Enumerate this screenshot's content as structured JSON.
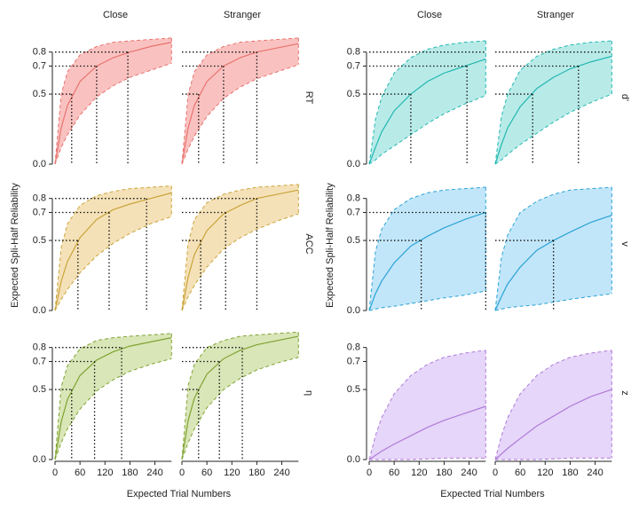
{
  "chart_data": [
    {
      "type": "ribbon-facets",
      "x_label": "Expected Trial Numbers",
      "y_label": "Expected Spli-Half Reliability",
      "columns": [
        "Close",
        "Stranger"
      ],
      "x": [
        0,
        15,
        30,
        60,
        100,
        140,
        180,
        230,
        280
      ],
      "xlim": [
        0,
        290
      ],
      "xticks": [
        0,
        60,
        120,
        180,
        240
      ],
      "ylim": [
        0,
        0.95
      ],
      "yticks": [
        {
          "value": 0,
          "label": "0.0"
        },
        0.5,
        0.7,
        0.8
      ],
      "facets": [
        {
          "name": "RT",
          "fill": "#f7b3b0",
          "color": "#e8736f",
          "cells": [
            {
              "median": [
                0,
                0.26,
                0.42,
                0.59,
                0.7,
                0.76,
                0.8,
                0.84,
                0.87
              ],
              "upper": [
                0,
                0.5,
                0.66,
                0.78,
                0.84,
                0.87,
                0.88,
                0.89,
                0.9
              ],
              "lower": [
                0,
                0.12,
                0.21,
                0.35,
                0.48,
                0.56,
                0.62,
                0.67,
                0.72
              ],
              "thresholds": [
                {
                  "y": 0.5,
                  "x": 40
                },
                {
                  "y": 0.7,
                  "x": 100
                },
                {
                  "y": 0.8,
                  "x": 175
                }
              ]
            },
            {
              "median": [
                0,
                0.26,
                0.42,
                0.59,
                0.7,
                0.76,
                0.8,
                0.83,
                0.86
              ],
              "upper": [
                0,
                0.5,
                0.66,
                0.78,
                0.84,
                0.87,
                0.88,
                0.89,
                0.9
              ],
              "lower": [
                0,
                0.11,
                0.2,
                0.34,
                0.47,
                0.55,
                0.61,
                0.66,
                0.71
              ],
              "thresholds": [
                {
                  "y": 0.5,
                  "x": 40
                },
                {
                  "y": 0.7,
                  "x": 100
                },
                {
                  "y": 0.8,
                  "x": 180
                }
              ]
            }
          ]
        },
        {
          "name": "ACC",
          "fill": "#f2d9a6",
          "color": "#c9a43a",
          "cells": [
            {
              "median": [
                0,
                0.21,
                0.35,
                0.52,
                0.65,
                0.72,
                0.76,
                0.8,
                0.84
              ],
              "upper": [
                0,
                0.45,
                0.62,
                0.75,
                0.82,
                0.85,
                0.87,
                0.88,
                0.89
              ],
              "lower": [
                0,
                0.08,
                0.15,
                0.27,
                0.39,
                0.48,
                0.55,
                0.62,
                0.67
              ],
              "thresholds": [
                {
                  "y": 0.5,
                  "x": 55
                },
                {
                  "y": 0.7,
                  "x": 130
                },
                {
                  "y": 0.8,
                  "x": 220
                }
              ]
            },
            {
              "median": [
                0,
                0.24,
                0.4,
                0.57,
                0.69,
                0.75,
                0.8,
                0.83,
                0.86
              ],
              "upper": [
                0,
                0.48,
                0.65,
                0.77,
                0.83,
                0.86,
                0.88,
                0.89,
                0.9
              ],
              "lower": [
                0,
                0.1,
                0.18,
                0.31,
                0.44,
                0.52,
                0.58,
                0.64,
                0.69
              ],
              "thresholds": [
                {
                  "y": 0.5,
                  "x": 45
                },
                {
                  "y": 0.7,
                  "x": 105
                },
                {
                  "y": 0.8,
                  "x": 180
                }
              ]
            }
          ]
        },
        {
          "name": "η",
          "fill": "#cfe0a6",
          "color": "#7fa332",
          "cells": [
            {
              "median": [
                0,
                0.27,
                0.43,
                0.6,
                0.71,
                0.77,
                0.81,
                0.84,
                0.87
              ],
              "upper": [
                0,
                0.52,
                0.67,
                0.79,
                0.85,
                0.87,
                0.88,
                0.89,
                0.9
              ],
              "lower": [
                0,
                0.12,
                0.22,
                0.36,
                0.49,
                0.57,
                0.63,
                0.68,
                0.72
              ],
              "thresholds": [
                {
                  "y": 0.5,
                  "x": 40
                },
                {
                  "y": 0.7,
                  "x": 95
                },
                {
                  "y": 0.8,
                  "x": 160
                }
              ]
            },
            {
              "median": [
                0,
                0.28,
                0.44,
                0.61,
                0.72,
                0.78,
                0.82,
                0.85,
                0.88
              ],
              "upper": [
                0,
                0.53,
                0.68,
                0.8,
                0.85,
                0.88,
                0.89,
                0.9,
                0.91
              ],
              "lower": [
                0,
                0.12,
                0.22,
                0.37,
                0.5,
                0.58,
                0.64,
                0.69,
                0.73
              ],
              "thresholds": [
                {
                  "y": 0.5,
                  "x": 40
                },
                {
                  "y": 0.7,
                  "x": 90
                },
                {
                  "y": 0.8,
                  "x": 145
                }
              ]
            }
          ]
        }
      ]
    },
    {
      "type": "ribbon-facets",
      "x_label": "Expected Trial Numbers",
      "y_label": "Expected Spli-Half Reliability",
      "columns": [
        "Close",
        "Stranger"
      ],
      "x": [
        0,
        15,
        30,
        60,
        100,
        140,
        180,
        230,
        280
      ],
      "xlim": [
        0,
        290
      ],
      "xticks": [
        0,
        60,
        120,
        180,
        240
      ],
      "ylim": [
        0,
        0.95
      ],
      "yticks": [
        {
          "value": 0,
          "label": "0.0"
        },
        0.5,
        0.7,
        0.8
      ],
      "facets": [
        {
          "name": "d'",
          "fill": "#a6e6e2",
          "color": "#22b6b0",
          "cells": [
            {
              "median": [
                0,
                0.12,
                0.23,
                0.38,
                0.5,
                0.59,
                0.65,
                0.7,
                0.75
              ],
              "upper": [
                0,
                0.32,
                0.48,
                0.65,
                0.76,
                0.82,
                0.85,
                0.87,
                0.88
              ],
              "lower": [
                0,
                0.03,
                0.07,
                0.13,
                0.21,
                0.29,
                0.36,
                0.43,
                0.49
              ],
              "thresholds": [
                {
                  "y": 0.5,
                  "x": 100
                },
                {
                  "y": 0.7,
                  "x": 235
                },
                {
                  "y": 0.8,
                  "x": null
                }
              ]
            },
            {
              "median": [
                0,
                0.14,
                0.26,
                0.41,
                0.54,
                0.62,
                0.68,
                0.73,
                0.77
              ],
              "upper": [
                0,
                0.34,
                0.5,
                0.67,
                0.77,
                0.82,
                0.85,
                0.87,
                0.88
              ],
              "lower": [
                0,
                0.03,
                0.07,
                0.14,
                0.22,
                0.3,
                0.37,
                0.44,
                0.5
              ],
              "thresholds": [
                {
                  "y": 0.5,
                  "x": 90
                },
                {
                  "y": 0.7,
                  "x": 200
                },
                {
                  "y": 0.8,
                  "x": null
                }
              ]
            }
          ]
        },
        {
          "name": "v",
          "fill": "#b3e0f7",
          "color": "#2ba3d6",
          "cells": [
            {
              "median": [
                0,
                0.12,
                0.21,
                0.34,
                0.46,
                0.53,
                0.59,
                0.65,
                0.7
              ],
              "upper": [
                0,
                0.42,
                0.58,
                0.72,
                0.8,
                0.84,
                0.86,
                0.87,
                0.88
              ],
              "lower": [
                0,
                0.01,
                0.02,
                0.03,
                0.05,
                0.07,
                0.09,
                0.11,
                0.14
              ],
              "thresholds": [
                {
                  "y": 0.5,
                  "x": 125
                },
                {
                  "y": 0.7,
                  "x": 280
                }
              ]
            },
            {
              "median": [
                0,
                0.1,
                0.19,
                0.31,
                0.43,
                0.5,
                0.56,
                0.63,
                0.68
              ],
              "upper": [
                0,
                0.38,
                0.54,
                0.7,
                0.78,
                0.83,
                0.86,
                0.87,
                0.88
              ],
              "lower": [
                0,
                0.01,
                0.02,
                0.03,
                0.04,
                0.06,
                0.08,
                0.1,
                0.12
              ],
              "thresholds": [
                {
                  "y": 0.5,
                  "x": 140
                }
              ]
            }
          ]
        },
        {
          "name": "z",
          "fill": "#e0ccf7",
          "color": "#b07ad8",
          "cells": [
            {
              "median": [
                0,
                0.03,
                0.06,
                0.11,
                0.17,
                0.23,
                0.28,
                0.33,
                0.38
              ],
              "upper": [
                0,
                0.17,
                0.3,
                0.47,
                0.6,
                0.68,
                0.73,
                0.76,
                0.78
              ],
              "lower": [
                0,
                0,
                0,
                0,
                0,
                0.005,
                0.01,
                0.01,
                0.01
              ],
              "thresholds": []
            },
            {
              "median": [
                0,
                0.04,
                0.08,
                0.15,
                0.24,
                0.31,
                0.38,
                0.45,
                0.5
              ],
              "upper": [
                0,
                0.17,
                0.3,
                0.47,
                0.6,
                0.68,
                0.73,
                0.76,
                0.78
              ],
              "lower": [
                0,
                0,
                0,
                0,
                0,
                0.005,
                0.01,
                0.01,
                0.01
              ],
              "thresholds": []
            }
          ]
        }
      ]
    }
  ]
}
